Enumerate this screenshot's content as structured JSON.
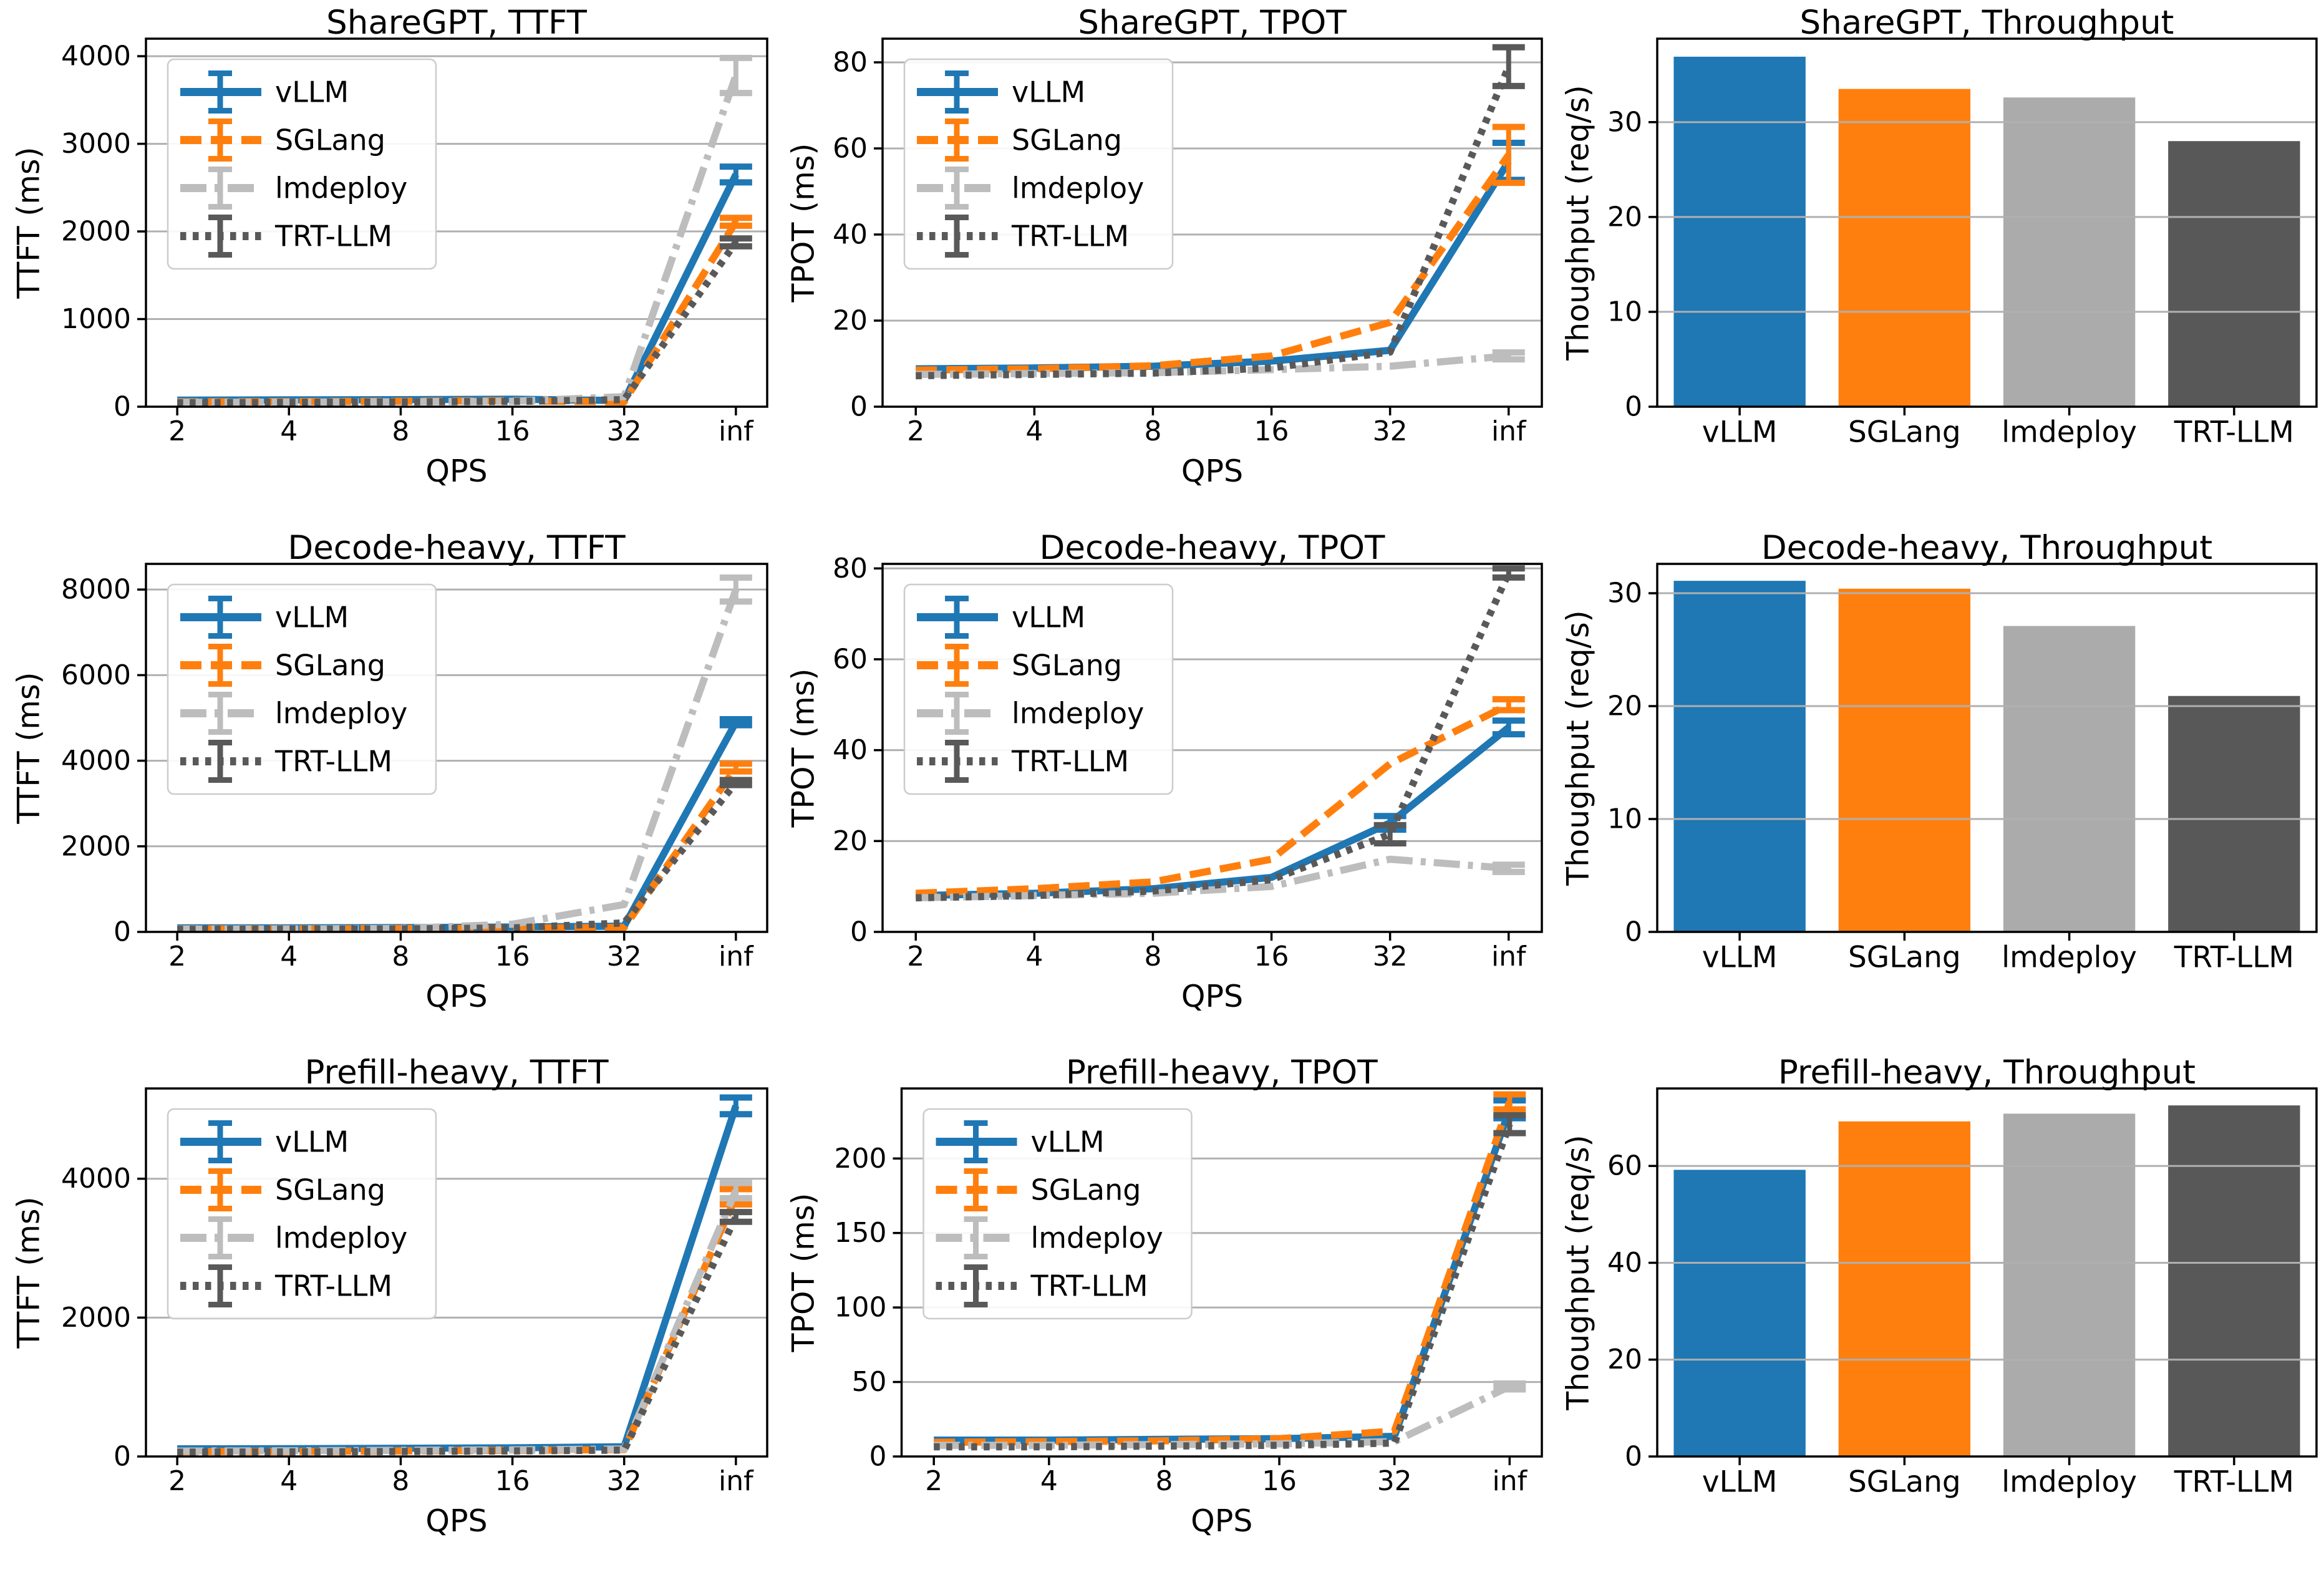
{
  "page": {
    "background": "#ffffff"
  },
  "style": {
    "grid_color": "#b0b0b0",
    "spine_color": "#000000",
    "text_color": "#000000",
    "legend_border_color": "#cccccc",
    "legend_bg": "rgba(255,255,255,0.9)"
  },
  "x_axis": {
    "label": "QPS",
    "ticks": [
      "2",
      "4",
      "8",
      "16",
      "32",
      "inf"
    ]
  },
  "frameworks": [
    {
      "name": "vLLM",
      "line_color": "#1f77b4",
      "bar_color": "#1f77b4",
      "line_style": "solid"
    },
    {
      "name": "SGLang",
      "line_color": "#ff7f0e",
      "bar_color": "#ff7f0e",
      "line_style": "dashed"
    },
    {
      "name": "lmdeploy",
      "line_color": "#bdbdbd",
      "bar_color": "#ababab",
      "line_style": "dashdot"
    },
    {
      "name": "TRT-LLM",
      "line_color": "#595959",
      "bar_color": "#585858",
      "line_style": "dotted"
    }
  ],
  "chart_data": [
    {
      "type": "line",
      "title": "ShareGPT, TTFT",
      "xlabel": "QPS",
      "ylabel": "TTFT (ms)",
      "x_ticklabels": [
        "2",
        "4",
        "8",
        "16",
        "32",
        "inf"
      ],
      "yticks": [
        0,
        1000,
        2000,
        3000,
        4000
      ],
      "ylim": [
        0,
        4200
      ],
      "grid": true,
      "legend": true,
      "legend_position": "upper left",
      "series": [
        {
          "name": "vLLM",
          "values": [
            75,
            78,
            80,
            85,
            70,
            2650
          ],
          "yerr": [
            0,
            0,
            0,
            0,
            0,
            90
          ]
        },
        {
          "name": "SGLang",
          "values": [
            55,
            58,
            62,
            68,
            55,
            2110
          ],
          "yerr": [
            0,
            0,
            0,
            0,
            0,
            45
          ]
        },
        {
          "name": "lmdeploy",
          "values": [
            50,
            52,
            56,
            62,
            115,
            3780
          ],
          "yerr": [
            0,
            0,
            0,
            0,
            0,
            200
          ]
        },
        {
          "name": "TRT-LLM",
          "values": [
            45,
            50,
            55,
            60,
            80,
            1875
          ],
          "yerr": [
            0,
            0,
            0,
            0,
            0,
            45
          ]
        }
      ]
    },
    {
      "type": "line",
      "title": "ShareGPT, TPOT",
      "xlabel": "QPS",
      "ylabel": "TPOT (ms)",
      "x_ticklabels": [
        "2",
        "4",
        "8",
        "16",
        "32",
        "inf"
      ],
      "yticks": [
        0,
        20,
        40,
        60,
        80
      ],
      "ylim": [
        0,
        85.5
      ],
      "grid": true,
      "legend": true,
      "legend_position": "upper left",
      "series": [
        {
          "name": "vLLM",
          "values": [
            8.8,
            9.0,
            9.4,
            10.6,
            13.1,
            57.0
          ],
          "yerr": [
            0,
            0,
            0,
            0,
            0,
            4.3
          ]
        },
        {
          "name": "SGLang",
          "values": [
            8.5,
            8.8,
            9.5,
            11.8,
            19.6,
            58.5
          ],
          "yerr": [
            0,
            0,
            0,
            0,
            0,
            6.5
          ]
        },
        {
          "name": "lmdeploy",
          "values": [
            7.5,
            7.7,
            7.9,
            8.6,
            9.4,
            11.8
          ],
          "yerr": [
            0,
            0,
            0,
            0,
            0,
            0.8
          ]
        },
        {
          "name": "TRT-LLM",
          "values": [
            7.2,
            7.5,
            7.8,
            9.0,
            12.7,
            79.0
          ],
          "yerr": [
            0,
            0,
            0,
            0,
            0,
            4.5
          ]
        }
      ]
    },
    {
      "type": "bar",
      "title": "ShareGPT, Throughput",
      "ylabel": "Thoughput (req/s)",
      "categories": [
        "vLLM",
        "SGLang",
        "lmdeploy",
        "TRT-LLM"
      ],
      "values": [
        36.9,
        33.5,
        32.6,
        28.0
      ],
      "yticks": [
        0,
        10,
        20,
        30
      ],
      "ylim": [
        0,
        38.8
      ],
      "grid": true
    },
    {
      "type": "line",
      "title": "Decode-heavy, TTFT",
      "xlabel": "QPS",
      "ylabel": "TTFT (ms)",
      "x_ticklabels": [
        "2",
        "4",
        "8",
        "16",
        "32",
        "inf"
      ],
      "yticks": [
        0,
        2000,
        4000,
        6000,
        8000
      ],
      "ylim": [
        0,
        8600
      ],
      "grid": true,
      "legend": true,
      "legend_position": "upper left",
      "series": [
        {
          "name": "vLLM",
          "values": [
            95,
            95,
            100,
            115,
            135,
            4900
          ],
          "yerr": [
            0,
            0,
            0,
            0,
            0,
            70
          ]
        },
        {
          "name": "SGLang",
          "values": [
            70,
            72,
            78,
            88,
            105,
            3840
          ],
          "yerr": [
            0,
            0,
            0,
            0,
            0,
            90
          ]
        },
        {
          "name": "lmdeploy",
          "values": [
            65,
            68,
            80,
            180,
            640,
            8000
          ],
          "yerr": [
            0,
            0,
            0,
            0,
            0,
            280
          ]
        },
        {
          "name": "TRT-LLM",
          "values": [
            60,
            64,
            70,
            92,
            210,
            3490
          ],
          "yerr": [
            0,
            0,
            0,
            0,
            0,
            60
          ]
        }
      ]
    },
    {
      "type": "line",
      "title": "Decode-heavy, TPOT",
      "xlabel": "QPS",
      "ylabel": "TPOT (ms)",
      "x_ticklabels": [
        "2",
        "4",
        "8",
        "16",
        "32",
        "inf"
      ],
      "yticks": [
        0,
        20,
        40,
        60,
        80
      ],
      "ylim": [
        0,
        81
      ],
      "grid": true,
      "legend": true,
      "legend_position": "upper left",
      "series": [
        {
          "name": "vLLM",
          "values": [
            8.0,
            8.5,
            9.5,
            12.0,
            24.0,
            45.0
          ],
          "yerr": [
            0,
            0,
            0,
            0,
            1.5,
            1.5
          ]
        },
        {
          "name": "SGLang",
          "values": [
            8.5,
            9.5,
            11.0,
            16.0,
            37.0,
            50.0
          ],
          "yerr": [
            0,
            0,
            0,
            0,
            0,
            1.2
          ]
        },
        {
          "name": "lmdeploy",
          "values": [
            7.5,
            8.0,
            8.5,
            10.0,
            16.0,
            14.0
          ],
          "yerr": [
            0,
            0,
            0,
            0,
            0,
            0.8
          ]
        },
        {
          "name": "TRT-LLM",
          "values": [
            7.5,
            8.0,
            9.0,
            11.5,
            21.5,
            79.0
          ],
          "yerr": [
            0,
            0,
            0,
            0,
            2.0,
            1.0
          ]
        }
      ]
    },
    {
      "type": "bar",
      "title": "Decode-heavy, Throughput",
      "ylabel": "Thoughput (req/s)",
      "categories": [
        "vLLM",
        "SGLang",
        "lmdeploy",
        "TRT-LLM"
      ],
      "values": [
        31.1,
        30.4,
        27.1,
        20.9
      ],
      "yticks": [
        0,
        10,
        20,
        30
      ],
      "ylim": [
        0,
        32.6
      ],
      "grid": true
    },
    {
      "type": "line",
      "title": "Prefill-heavy, TTFT",
      "xlabel": "QPS",
      "ylabel": "TTFT (ms)",
      "x_ticklabels": [
        "2",
        "4",
        "8",
        "16",
        "32",
        "inf"
      ],
      "yticks": [
        0,
        2000,
        4000
      ],
      "ylim": [
        0,
        5300
      ],
      "grid": true,
      "legend": true,
      "legend_position": "upper left",
      "series": [
        {
          "name": "vLLM",
          "values": [
            110,
            112,
            118,
            125,
            140,
            5050
          ],
          "yerr": [
            0,
            0,
            0,
            0,
            0,
            120
          ]
        },
        {
          "name": "SGLang",
          "values": [
            70,
            74,
            80,
            88,
            100,
            3740
          ],
          "yerr": [
            0,
            0,
            0,
            0,
            0,
            110
          ]
        },
        {
          "name": "lmdeploy",
          "values": [
            78,
            82,
            88,
            95,
            108,
            3830
          ],
          "yerr": [
            0,
            0,
            0,
            0,
            0,
            110
          ]
        },
        {
          "name": "TRT-LLM",
          "values": [
            62,
            66,
            72,
            80,
            92,
            3450
          ],
          "yerr": [
            0,
            0,
            0,
            0,
            0,
            70
          ]
        }
      ]
    },
    {
      "type": "line",
      "title": "Prefill-heavy, TPOT",
      "xlabel": "QPS",
      "ylabel": "TPOT (ms)",
      "x_ticklabels": [
        "2",
        "4",
        "8",
        "16",
        "32",
        "inf"
      ],
      "yticks": [
        0,
        50,
        100,
        150,
        200
      ],
      "ylim": [
        0,
        247
      ],
      "grid": true,
      "legend": true,
      "legend_position": "upper left",
      "series": [
        {
          "name": "vLLM",
          "values": [
            11.0,
            11.0,
            11.5,
            12.0,
            13.5,
            233
          ],
          "yerr": [
            0,
            0,
            0,
            0,
            0,
            6
          ]
        },
        {
          "name": "SGLang",
          "values": [
            9.5,
            10.0,
            10.5,
            12.0,
            17.0,
            238
          ],
          "yerr": [
            0,
            0,
            0,
            0,
            0,
            5
          ]
        },
        {
          "name": "lmdeploy",
          "values": [
            7.5,
            7.5,
            8.0,
            8.5,
            10.0,
            47
          ],
          "yerr": [
            0,
            0,
            0,
            0,
            0,
            2
          ]
        },
        {
          "name": "TRT-LLM",
          "values": [
            6.5,
            6.5,
            7.0,
            7.5,
            9.0,
            223
          ],
          "yerr": [
            0,
            0,
            0,
            0,
            0,
            6
          ]
        }
      ]
    },
    {
      "type": "bar",
      "title": "Prefill-heavy, Throughput",
      "ylabel": "Thoughput (req/s)",
      "categories": [
        "vLLM",
        "SGLang",
        "lmdeploy",
        "TRT-LLM"
      ],
      "values": [
        59.2,
        69.2,
        70.8,
        72.5
      ],
      "yticks": [
        0,
        20,
        40,
        60
      ],
      "ylim": [
        0,
        76
      ],
      "grid": true
    }
  ]
}
